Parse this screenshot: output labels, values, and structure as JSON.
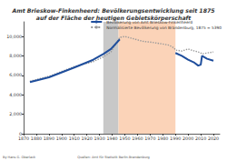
{
  "chart_data": {
    "type": "line",
    "title": "Amt Brieskow-Finkenheerd: Bevölkerungsentwicklung seit 1875\nauf der Fläche der heutigen Gebietskörperschaft",
    "x": [
      1875,
      1890,
      1910,
      1925,
      1933,
      1939,
      1946,
      1950,
      1964,
      1971,
      1981,
      1985,
      1989,
      1990,
      1995,
      2000,
      2005,
      2008,
      2010,
      2011,
      2015,
      2020
    ],
    "series": [
      {
        "name": "Bevölkerung von Amt Brieskow-Finkenheerd",
        "color": "#1f4e9c",
        "line_style": "solid",
        "values": [
          5300,
          5800,
          6800,
          7600,
          8200,
          8700,
          9700,
          null,
          null,
          null,
          null,
          null,
          null,
          8300,
          8000,
          7600,
          7300,
          7000,
          7100,
          8000,
          7700,
          7500
        ]
      },
      {
        "name": "Normalisierte Bevölkerung von Brandenburg, 1875 = 5390",
        "color": "#999999",
        "line_style": "dotted",
        "values": [
          5390,
          5900,
          6900,
          7400,
          7900,
          8400,
          9900,
          10000,
          9500,
          9400,
          9200,
          9100,
          8800,
          8600,
          8500,
          8700,
          8500,
          8400,
          8300,
          8200,
          8300,
          8400
        ]
      }
    ],
    "shaded_ranges": [
      {
        "from": 1933,
        "to": 1945,
        "color": "#c8c8c8"
      },
      {
        "from": 1945,
        "to": 1990,
        "color": "#fbd3b8"
      }
    ],
    "xlim": [
      1870,
      2025
    ],
    "xticks": [
      1870,
      1880,
      1890,
      1900,
      1910,
      1920,
      1930,
      1940,
      1950,
      1960,
      1970,
      1980,
      1990,
      2000,
      2010,
      2020
    ],
    "ylim": [
      0,
      11500
    ],
    "yticks": [
      0,
      {
        "value": 2000,
        "label": "2,000"
      },
      {
        "value": 4000,
        "label": "4,000"
      },
      {
        "value": 6000,
        "label": "6,000"
      },
      {
        "value": 8000,
        "label": "8,000"
      },
      {
        "value": 10000,
        "label": "10,000"
      }
    ],
    "grid": false,
    "legend": "top-right",
    "source": [
      "By Hans G. Oberlack",
      "Quellen: Amt für Statistik Berlin-Brandenburg"
    ]
  }
}
